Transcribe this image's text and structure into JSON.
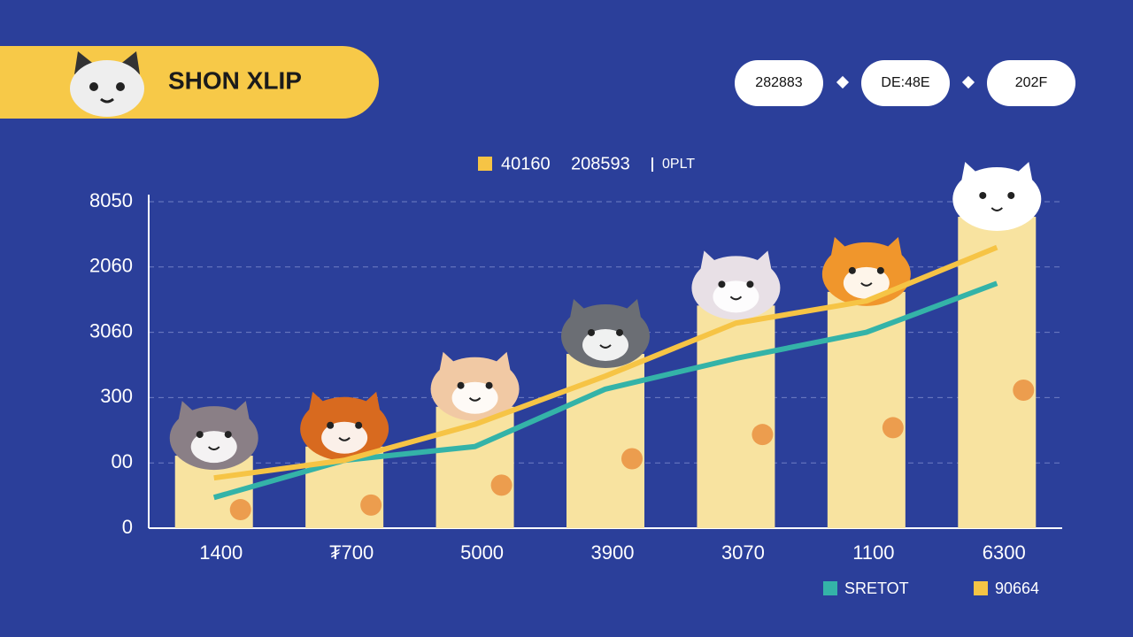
{
  "header": {
    "title": "SHON XLIP",
    "buttons": [
      "282883",
      "DE:48E",
      "202F"
    ]
  },
  "chart_data": {
    "type": "bar",
    "legend_top": [
      "40160",
      "208593",
      "0PLT"
    ],
    "categories": [
      "1400",
      "₮700",
      "5000",
      "3900",
      "3070",
      "1100",
      "6300"
    ],
    "ylim": [
      0,
      5
    ],
    "yticks": [
      {
        "value": 0,
        "label": "0"
      },
      {
        "value": 1,
        "label": "00"
      },
      {
        "value": 2,
        "label": "300"
      },
      {
        "value": 3,
        "label": "3060"
      },
      {
        "value": 4,
        "label": "2060"
      },
      {
        "value": 5,
        "label": "8050"
      }
    ],
    "grid": true,
    "bars": {
      "color": "#f8e3a0",
      "values": [
        1.11,
        1.25,
        1.86,
        2.67,
        3.41,
        3.62,
        4.77
      ]
    },
    "series": [
      {
        "name": "SRETOT",
        "color": "#34b3a8",
        "values": [
          0.47,
          1.04,
          1.25,
          2.13,
          2.6,
          3.0,
          3.75
        ]
      },
      {
        "name": "90664",
        "color": "#f6c445",
        "values": [
          0.77,
          1.04,
          1.59,
          2.33,
          3.14,
          3.48,
          4.3
        ]
      }
    ]
  }
}
